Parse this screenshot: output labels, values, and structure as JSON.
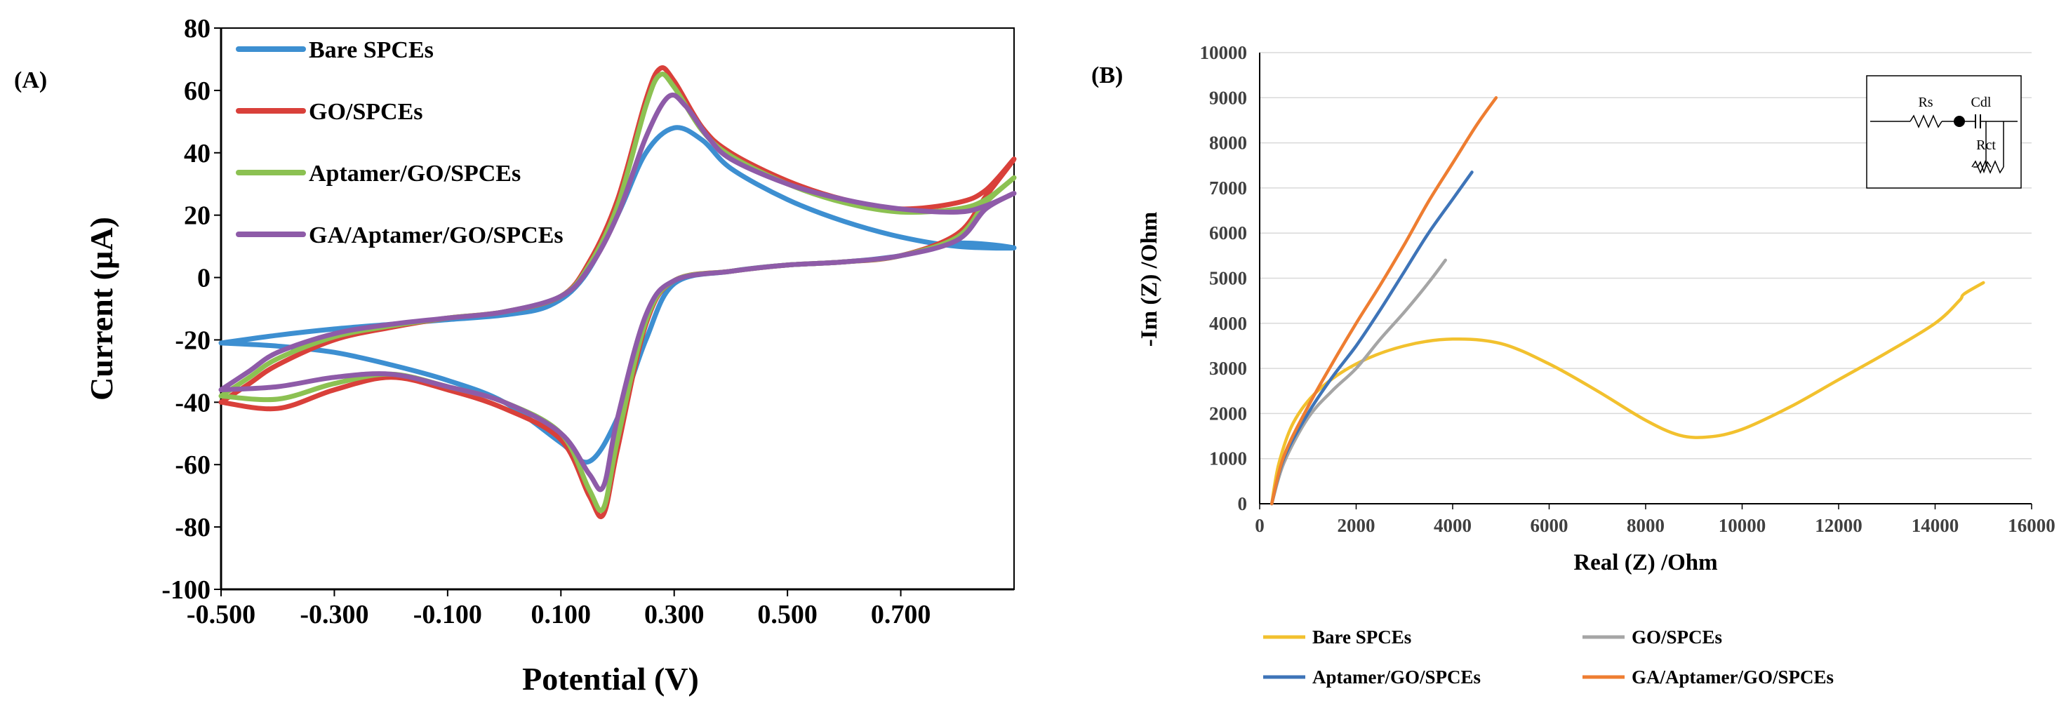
{
  "chart_data": [
    {
      "panel_label": "(A)",
      "type": "line",
      "xlabel": "Potential (V)",
      "ylabel": "Current (µA)",
      "xlim": [
        -0.5,
        0.9
      ],
      "ylim": [
        -100,
        80
      ],
      "xticks": [
        "-0.500",
        "-0.300",
        "-0.100",
        "0.100",
        "0.300",
        "0.500",
        "0.700"
      ],
      "xtick_values": [
        -0.5,
        -0.3,
        -0.1,
        0.1,
        0.3,
        0.5,
        0.7
      ],
      "yticks": [
        "80",
        "60",
        "40",
        "20",
        "0",
        "-20",
        "-40",
        "-60",
        "-80",
        "-100"
      ],
      "ytick_values": [
        80,
        60,
        40,
        20,
        0,
        -20,
        -40,
        -60,
        -80,
        -100
      ],
      "legend_position": "upper-left",
      "series": [
        {
          "name": "Bare SPCEs",
          "color": "#3d8fd1",
          "points": [
            [
              -0.5,
              -21
            ],
            [
              -0.4,
              -18.5
            ],
            [
              -0.3,
              -16.5
            ],
            [
              -0.2,
              -15
            ],
            [
              -0.1,
              -13.5
            ],
            [
              0.0,
              -12
            ],
            [
              0.08,
              -9
            ],
            [
              0.14,
              0
            ],
            [
              0.2,
              20
            ],
            [
              0.25,
              40
            ],
            [
              0.3,
              48
            ],
            [
              0.35,
              44
            ],
            [
              0.4,
              35
            ],
            [
              0.5,
              25
            ],
            [
              0.6,
              18
            ],
            [
              0.7,
              13
            ],
            [
              0.8,
              10
            ],
            [
              0.9,
              9.5
            ],
            [
              0.8,
              11
            ],
            [
              0.7,
              7
            ],
            [
              0.6,
              5
            ],
            [
              0.5,
              4
            ],
            [
              0.4,
              2
            ],
            [
              0.3,
              -2
            ],
            [
              0.25,
              -20
            ],
            [
              0.2,
              -45
            ],
            [
              0.15,
              -59
            ],
            [
              0.1,
              -53
            ],
            [
              0.0,
              -40
            ],
            [
              -0.1,
              -33
            ],
            [
              -0.2,
              -28
            ],
            [
              -0.3,
              -24
            ],
            [
              -0.4,
              -22
            ],
            [
              -0.5,
              -21
            ]
          ]
        },
        {
          "name": "GO/SPCEs",
          "color": "#d9403a",
          "points": [
            [
              -0.5,
              -40
            ],
            [
              -0.45,
              -34
            ],
            [
              -0.4,
              -28
            ],
            [
              -0.3,
              -20
            ],
            [
              -0.2,
              -16
            ],
            [
              -0.1,
              -13
            ],
            [
              0.0,
              -11
            ],
            [
              0.1,
              -6
            ],
            [
              0.15,
              5
            ],
            [
              0.2,
              25
            ],
            [
              0.25,
              57
            ],
            [
              0.275,
              67
            ],
            [
              0.3,
              63
            ],
            [
              0.35,
              48
            ],
            [
              0.4,
              40
            ],
            [
              0.5,
              31
            ],
            [
              0.6,
              25
            ],
            [
              0.7,
              22
            ],
            [
              0.8,
              24
            ],
            [
              0.85,
              28
            ],
            [
              0.9,
              38
            ],
            [
              0.85,
              26
            ],
            [
              0.8,
              14
            ],
            [
              0.7,
              7
            ],
            [
              0.6,
              5
            ],
            [
              0.5,
              4
            ],
            [
              0.4,
              2
            ],
            [
              0.3,
              -1
            ],
            [
              0.25,
              -15
            ],
            [
              0.2,
              -55
            ],
            [
              0.175,
              -76
            ],
            [
              0.15,
              -70
            ],
            [
              0.1,
              -52
            ],
            [
              0.0,
              -42
            ],
            [
              -0.1,
              -36
            ],
            [
              -0.2,
              -32
            ],
            [
              -0.3,
              -36
            ],
            [
              -0.4,
              -42
            ],
            [
              -0.5,
              -40
            ]
          ]
        },
        {
          "name": "Aptamer/GO/SPCEs",
          "color": "#8cc152",
          "points": [
            [
              -0.5,
              -38
            ],
            [
              -0.45,
              -32
            ],
            [
              -0.4,
              -26
            ],
            [
              -0.3,
              -19
            ],
            [
              -0.2,
              -15.5
            ],
            [
              -0.1,
              -13
            ],
            [
              0.0,
              -11
            ],
            [
              0.1,
              -6
            ],
            [
              0.15,
              4
            ],
            [
              0.2,
              23
            ],
            [
              0.25,
              55
            ],
            [
              0.275,
              65
            ],
            [
              0.3,
              61
            ],
            [
              0.35,
              47
            ],
            [
              0.4,
              39
            ],
            [
              0.5,
              30
            ],
            [
              0.6,
              24
            ],
            [
              0.7,
              21
            ],
            [
              0.8,
              22
            ],
            [
              0.85,
              25
            ],
            [
              0.9,
              32
            ],
            [
              0.85,
              24
            ],
            [
              0.8,
              13
            ],
            [
              0.7,
              7
            ],
            [
              0.6,
              5
            ],
            [
              0.5,
              4
            ],
            [
              0.4,
              2
            ],
            [
              0.3,
              -1
            ],
            [
              0.25,
              -14
            ],
            [
              0.2,
              -52
            ],
            [
              0.175,
              -74
            ],
            [
              0.15,
              -68
            ],
            [
              0.1,
              -50
            ],
            [
              0.0,
              -40
            ],
            [
              -0.1,
              -35
            ],
            [
              -0.2,
              -31
            ],
            [
              -0.3,
              -34
            ],
            [
              -0.4,
              -39
            ],
            [
              -0.5,
              -38
            ]
          ]
        },
        {
          "name": "GA/Aptamer/GO/SPCEs",
          "color": "#8e5ba8",
          "points": [
            [
              -0.5,
              -36
            ],
            [
              -0.45,
              -30
            ],
            [
              -0.4,
              -24
            ],
            [
              -0.3,
              -18
            ],
            [
              -0.2,
              -15
            ],
            [
              -0.1,
              -13
            ],
            [
              0.0,
              -11
            ],
            [
              0.1,
              -6
            ],
            [
              0.15,
              3
            ],
            [
              0.2,
              20
            ],
            [
              0.25,
              45
            ],
            [
              0.29,
              58
            ],
            [
              0.32,
              55
            ],
            [
              0.36,
              45
            ],
            [
              0.4,
              38
            ],
            [
              0.5,
              30
            ],
            [
              0.6,
              25
            ],
            [
              0.7,
              22
            ],
            [
              0.8,
              21
            ],
            [
              0.85,
              23
            ],
            [
              0.9,
              27
            ],
            [
              0.85,
              22
            ],
            [
              0.8,
              12
            ],
            [
              0.7,
              7
            ],
            [
              0.6,
              5
            ],
            [
              0.5,
              4
            ],
            [
              0.4,
              2
            ],
            [
              0.3,
              -1
            ],
            [
              0.25,
              -12
            ],
            [
              0.2,
              -45
            ],
            [
              0.175,
              -67
            ],
            [
              0.15,
              -63
            ],
            [
              0.1,
              -50
            ],
            [
              0.0,
              -40
            ],
            [
              -0.1,
              -35
            ],
            [
              -0.2,
              -31
            ],
            [
              -0.3,
              -32
            ],
            [
              -0.4,
              -35
            ],
            [
              -0.5,
              -36
            ]
          ]
        }
      ]
    },
    {
      "panel_label": "(B)",
      "type": "line",
      "xlabel": "Real (Z) /Ohm",
      "ylabel": "-Im (Z) /Ohm",
      "xlim": [
        0,
        16000
      ],
      "ylim": [
        0,
        10000
      ],
      "xticks": [
        "0",
        "2000",
        "4000",
        "6000",
        "8000",
        "10000",
        "12000",
        "14000",
        "16000"
      ],
      "xtick_values": [
        0,
        2000,
        4000,
        6000,
        8000,
        10000,
        12000,
        14000,
        16000
      ],
      "yticks": [
        "10000",
        "9000",
        "8000",
        "7000",
        "6000",
        "5000",
        "4000",
        "3000",
        "2000",
        "1000",
        "0"
      ],
      "ytick_values": [
        10000,
        9000,
        8000,
        7000,
        6000,
        5000,
        4000,
        3000,
        2000,
        1000,
        0
      ],
      "legend_position": "bottom",
      "inset": {
        "labels": [
          "Rs",
          "Cdl",
          "Rct"
        ]
      },
      "series": [
        {
          "name": "Bare SPCEs",
          "color": "#f2c12e",
          "points": [
            [
              250,
              0
            ],
            [
              400,
              900
            ],
            [
              700,
              1800
            ],
            [
              1200,
              2500
            ],
            [
              2000,
              3100
            ],
            [
              3000,
              3500
            ],
            [
              4000,
              3650
            ],
            [
              5000,
              3550
            ],
            [
              6000,
              3100
            ],
            [
              7000,
              2500
            ],
            [
              8000,
              1850
            ],
            [
              8700,
              1520
            ],
            [
              9300,
              1480
            ],
            [
              10000,
              1650
            ],
            [
              11000,
              2150
            ],
            [
              12000,
              2750
            ],
            [
              13000,
              3350
            ],
            [
              14000,
              4000
            ],
            [
              14500,
              4500
            ],
            [
              14600,
              4650
            ],
            [
              15000,
              4900
            ]
          ]
        },
        {
          "name": "GO/SPCEs",
          "color": "#a5a5a5",
          "points": [
            [
              250,
              0
            ],
            [
              500,
              900
            ],
            [
              1000,
              1900
            ],
            [
              1500,
              2500
            ],
            [
              2000,
              3000
            ],
            [
              2500,
              3650
            ],
            [
              3000,
              4250
            ],
            [
              3500,
              4900
            ],
            [
              3850,
              5400
            ]
          ]
        },
        {
          "name": "Aptamer/GO/SPCEs",
          "color": "#3e74b8",
          "points": [
            [
              250,
              0
            ],
            [
              500,
              1000
            ],
            [
              1000,
              2000
            ],
            [
              1500,
              2800
            ],
            [
              2000,
              3500
            ],
            [
              2500,
              4300
            ],
            [
              3000,
              5150
            ],
            [
              3500,
              6000
            ],
            [
              4000,
              6750
            ],
            [
              4400,
              7350
            ]
          ]
        },
        {
          "name": "GA/Aptamer/GO/SPCEs",
          "color": "#ee7d31",
          "points": [
            [
              250,
              0
            ],
            [
              500,
              1050
            ],
            [
              1000,
              2150
            ],
            [
              1500,
              3100
            ],
            [
              2000,
              4000
            ],
            [
              2500,
              4850
            ],
            [
              3000,
              5750
            ],
            [
              3500,
              6700
            ],
            [
              4000,
              7550
            ],
            [
              4500,
              8400
            ],
            [
              4900,
              9000
            ]
          ]
        }
      ]
    }
  ]
}
